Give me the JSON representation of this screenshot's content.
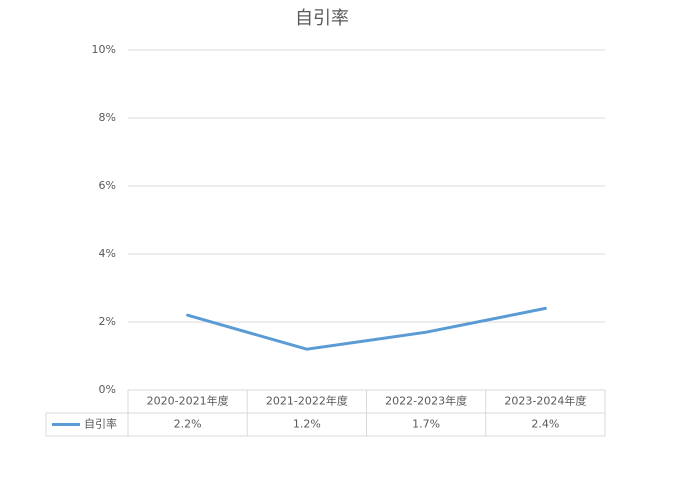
{
  "chart_data": {
    "type": "line",
    "title": "自引率",
    "categories": [
      "2020-2021年度",
      "2021-2022年度",
      "2022-2023年度",
      "2023-2024年度"
    ],
    "series": [
      {
        "name": "自引率",
        "color": "#5b9bd5",
        "values": [
          2.2,
          1.2,
          1.7,
          2.4
        ],
        "value_labels": [
          "2.2%",
          "1.2%",
          "1.7%",
          "2.4%"
        ]
      }
    ],
    "ylim": [
      0,
      10
    ],
    "yticks": [
      {
        "value": 0,
        "label": "0%"
      },
      {
        "value": 2,
        "label": "2%"
      },
      {
        "value": 4,
        "label": "4%"
      },
      {
        "value": 6,
        "label": "6%"
      },
      {
        "value": 8,
        "label": "8%"
      },
      {
        "value": 10,
        "label": "10%"
      }
    ],
    "grid": true
  }
}
